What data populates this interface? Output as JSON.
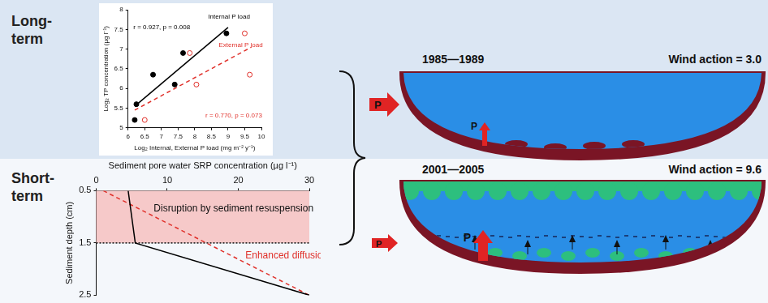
{
  "diagram": {
    "rows": [
      {
        "label": "Long-term"
      },
      {
        "label": "Short-term"
      }
    ],
    "panels": [
      {
        "period": "1985—1989",
        "wind_action": "Wind action = 3.0",
        "external_input_label": "P",
        "internal_release_label": "P"
      },
      {
        "period": "2001—2005",
        "wind_action": "Wind action = 9.6",
        "external_input_label": "P",
        "internal_release_label": "P"
      }
    ]
  },
  "chart_data": [
    {
      "type": "scatter",
      "x_label": "Log₂ Internal, External P load (mg m⁻² y⁻¹)",
      "y_label": "Log₂ TP concentration (µg l⁻¹)",
      "xlim": [
        6,
        10
      ],
      "xticks": [
        6,
        6.5,
        7,
        7.5,
        8,
        8.5,
        9,
        9.5,
        10
      ],
      "ylim": [
        5,
        8
      ],
      "yticks": [
        5,
        5.5,
        6,
        6.5,
        7,
        7.5,
        8
      ],
      "grid": false,
      "series": [
        {
          "name": "Internal P load",
          "type": "scatter",
          "color": "#000000",
          "marker": "circle",
          "x": [
            6.2,
            6.25,
            6.75,
            7.4,
            7.65,
            8.95
          ],
          "values": [
            5.2,
            5.6,
            6.35,
            6.1,
            6.9,
            7.4
          ]
        },
        {
          "name": "External P load",
          "type": "scatter",
          "color": "#e0302a",
          "marker": "open_circle",
          "x": [
            6.5,
            7.85,
            8.05,
            9.5,
            9.65
          ],
          "values": [
            5.2,
            6.9,
            6.1,
            7.4,
            6.35
          ]
        },
        {
          "type": "line",
          "color": "#000000",
          "line_style": "solid",
          "x": [
            6.2,
            9.0
          ],
          "values": [
            5.55,
            7.55
          ]
        },
        {
          "type": "line",
          "color": "#e0302a",
          "line_style": "dashed",
          "x": [
            6.2,
            9.7
          ],
          "values": [
            5.45,
            7.05
          ]
        }
      ],
      "annotations": [
        {
          "text": "r = 0.927, p = 0.008",
          "color": "#000000"
        },
        {
          "text": "r = 0.770, p = 0.073",
          "color": "#e0302a"
        }
      ]
    },
    {
      "type": "line",
      "x_label": "Sediment pore water SRP concentration (µg l⁻¹)",
      "y_label": "Sediment depth (cm)",
      "xlim": [
        0,
        30
      ],
      "xticks": [
        0,
        10,
        20,
        30
      ],
      "ylim": [
        2.5,
        0.5
      ],
      "yticks": [
        0.5,
        1.5,
        2.5
      ],
      "grid": false,
      "series": [
        {
          "type": "line",
          "color": "#000000",
          "line_style": "solid",
          "x": [
            4.5,
            5.5,
            30
          ],
          "values": [
            0.5,
            1.5,
            2.5
          ]
        },
        {
          "type": "line",
          "color": "#e0302a",
          "line_style": "dashed",
          "x": [
            1,
            30
          ],
          "values": [
            0.5,
            2.5
          ]
        }
      ],
      "shaded_band": {
        "depth": [
          0.5,
          1.5
        ],
        "label": "Disruption by sediment resuspension",
        "color": "#f6c9c9"
      },
      "annotations": [
        {
          "text": "Enhanced diffusion",
          "color": "#e0302a"
        }
      ]
    }
  ]
}
